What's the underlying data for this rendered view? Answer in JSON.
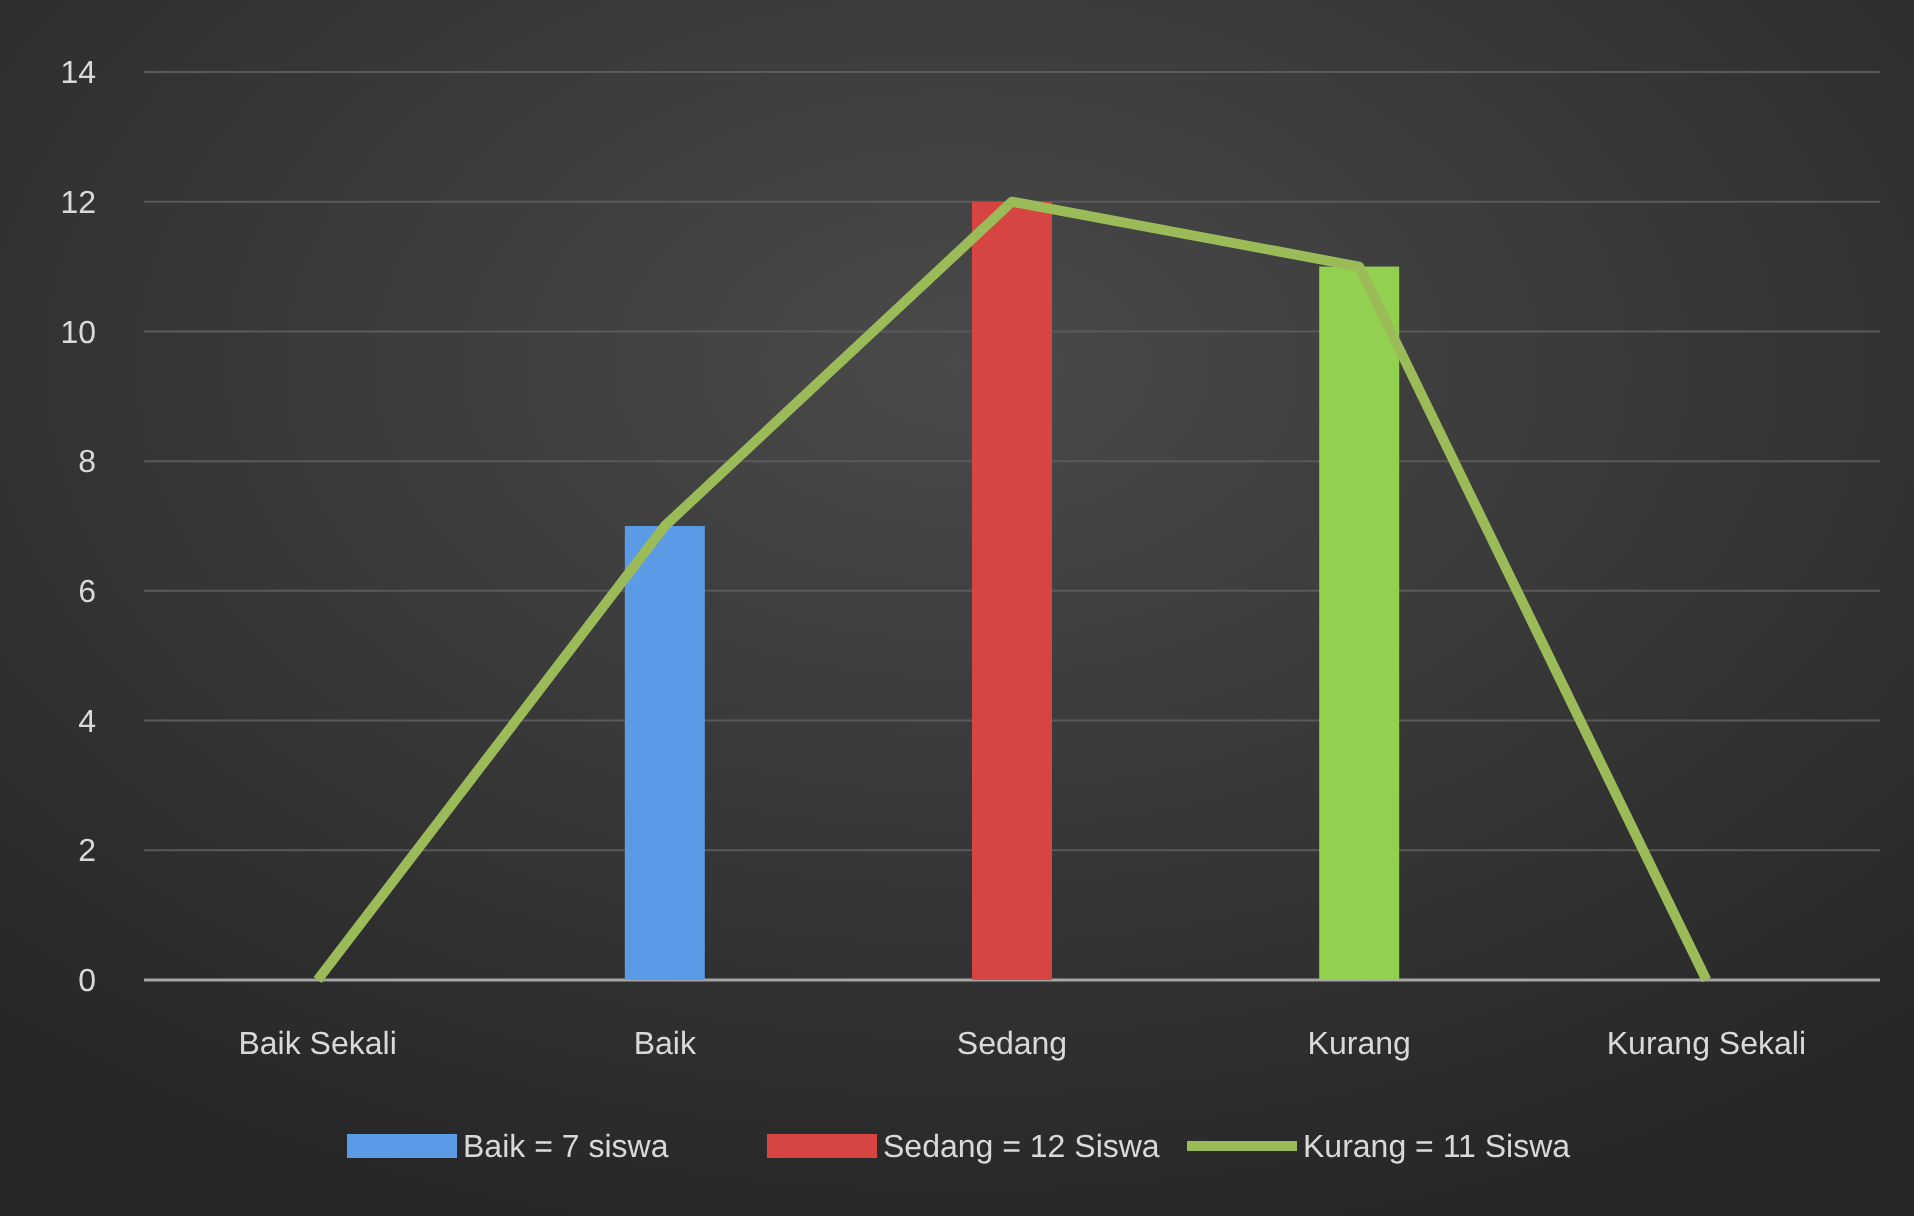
{
  "chart_data": {
    "type": "bar",
    "categories": [
      "Baik Sekali",
      "Baik",
      "Sedang",
      "Kurang",
      "Kurang Sekali"
    ],
    "series": [
      {
        "name": "Baik = 7 siswa",
        "color": "#5b9be6",
        "values": [
          null,
          7,
          null,
          null,
          null
        ]
      },
      {
        "name": "Sedang = 12 Siswa",
        "color": "#d64541",
        "values": [
          null,
          null,
          12,
          null,
          null
        ]
      },
      {
        "color": "#92d050",
        "values": [
          null,
          null,
          null,
          11,
          null
        ]
      },
      {
        "name": "Kurang = 11 Siswa",
        "type": "line",
        "color": "#9bbb59",
        "values": [
          0,
          7,
          12,
          11,
          0
        ]
      }
    ],
    "ylim": [
      0,
      14
    ],
    "yticks": [
      0,
      2,
      4,
      6,
      8,
      10,
      12,
      14
    ],
    "grid": "y",
    "legend": "bottom",
    "marker": "none"
  }
}
